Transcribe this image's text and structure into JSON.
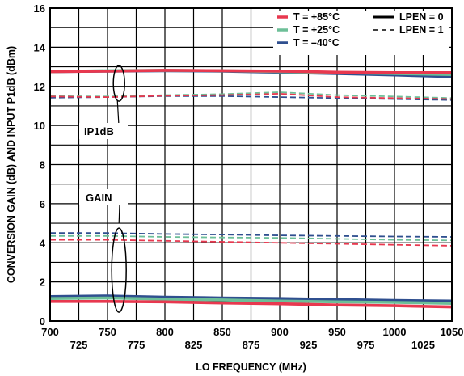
{
  "chart_data": {
    "type": "line",
    "title": "",
    "xlabel": "LO FREQUENCY (MHz)",
    "ylabel": "CONVERSION GAIN (dB) AND INPUT P1dB (dBm)",
    "xlim": [
      700,
      1050
    ],
    "ylim": [
      0,
      16
    ],
    "x_ticks_row1": [
      "700",
      "750",
      "800",
      "850",
      "900",
      "950",
      "1000",
      "1050"
    ],
    "x_ticks_row2": [
      "725",
      "775",
      "825",
      "875",
      "925",
      "975",
      "1025"
    ],
    "y_ticks": [
      "0",
      "2",
      "4",
      "6",
      "8",
      "10",
      "12",
      "14",
      "16"
    ],
    "grid": true,
    "legend_position": "top-right",
    "colors": {
      "t_plus85": "#e8384f",
      "t_plus25": "#6dbf98",
      "t_minus40": "#2f4f8f"
    },
    "legend": {
      "temperature": [
        {
          "label": "T = +85°C",
          "color": "#e8384f"
        },
        {
          "label": "T = +25°C",
          "color": "#6dbf98"
        },
        {
          "label": "T = –40°C",
          "color": "#2f4f8f"
        }
      ],
      "linestyle": [
        {
          "label": "LPEN = 0",
          "style": "solid"
        },
        {
          "label": "LPEN = 1",
          "style": "dashed"
        }
      ]
    },
    "annotations": [
      {
        "text": "IP1dB"
      },
      {
        "text": "GAIN"
      }
    ],
    "x": [
      700,
      750,
      800,
      850,
      900,
      950,
      1000,
      1050
    ],
    "series": [
      {
        "group": "IP1dB",
        "temp": "T = -40°C",
        "lpen": "LPEN = 0",
        "color": "#2f4f8f",
        "dash": false,
        "values": [
          12.75,
          12.78,
          12.8,
          12.78,
          12.72,
          12.65,
          12.58,
          12.5
        ]
      },
      {
        "group": "IP1dB",
        "temp": "T = +25°C",
        "lpen": "LPEN = 0",
        "color": "#6dbf98",
        "dash": false,
        "values": [
          12.75,
          12.8,
          12.82,
          12.8,
          12.75,
          12.7,
          12.65,
          12.6
        ]
      },
      {
        "group": "IP1dB",
        "temp": "T = +85°C",
        "lpen": "LPEN = 0",
        "color": "#e8384f",
        "dash": false,
        "values": [
          12.75,
          12.78,
          12.82,
          12.8,
          12.78,
          12.72,
          12.7,
          12.7
        ]
      },
      {
        "group": "IP1dB",
        "temp": "T = -40°C",
        "lpen": "LPEN = 1",
        "color": "#2f4f8f",
        "dash": true,
        "values": [
          11.42,
          11.45,
          11.5,
          11.5,
          11.45,
          11.4,
          11.35,
          11.3
        ]
      },
      {
        "group": "IP1dB",
        "temp": "T = +25°C",
        "lpen": "LPEN = 1",
        "color": "#6dbf98",
        "dash": true,
        "values": [
          11.5,
          11.48,
          11.55,
          11.6,
          11.7,
          11.55,
          11.48,
          11.4
        ]
      },
      {
        "group": "IP1dB",
        "temp": "T = +85°C",
        "lpen": "LPEN = 1",
        "color": "#e8384f",
        "dash": true,
        "values": [
          11.48,
          11.45,
          11.52,
          11.55,
          11.62,
          11.45,
          11.4,
          11.35
        ]
      },
      {
        "group": "GAIN",
        "temp": "T = -40°C",
        "lpen": "LPEN = 1",
        "color": "#2f4f8f",
        "dash": true,
        "values": [
          4.5,
          4.5,
          4.45,
          4.42,
          4.38,
          4.35,
          4.32,
          4.3
        ]
      },
      {
        "group": "GAIN",
        "temp": "T = +25°C",
        "lpen": "LPEN = 1",
        "color": "#6dbf98",
        "dash": true,
        "values": [
          4.35,
          4.35,
          4.3,
          4.27,
          4.25,
          4.2,
          4.15,
          4.12
        ]
      },
      {
        "group": "GAIN",
        "temp": "T = +85°C",
        "lpen": "LPEN = 1",
        "color": "#e8384f",
        "dash": true,
        "values": [
          4.15,
          4.15,
          4.1,
          4.05,
          4.0,
          3.95,
          3.9,
          3.85
        ]
      },
      {
        "group": "GAIN",
        "temp": "T = -40°C",
        "lpen": "LPEN = 0",
        "color": "#2f4f8f",
        "dash": false,
        "values": [
          1.25,
          1.28,
          1.22,
          1.18,
          1.15,
          1.1,
          1.05,
          1.02
        ]
      },
      {
        "group": "GAIN",
        "temp": "T = +25°C",
        "lpen": "LPEN = 0",
        "color": "#6dbf98",
        "dash": false,
        "values": [
          1.15,
          1.18,
          1.12,
          1.08,
          1.02,
          0.98,
          0.95,
          0.9
        ]
      },
      {
        "group": "GAIN",
        "temp": "T = +85°C",
        "lpen": "LPEN = 0",
        "color": "#e8384f",
        "dash": false,
        "values": [
          1.0,
          1.0,
          0.98,
          0.92,
          0.88,
          0.82,
          0.78,
          0.72
        ]
      }
    ]
  }
}
